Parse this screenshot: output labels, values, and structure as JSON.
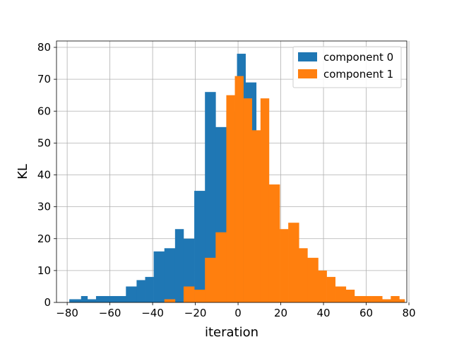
{
  "chart_data": {
    "type": "bar",
    "subtype": "histogram",
    "title": "",
    "xlabel": "iteration",
    "ylabel": "KL",
    "xlim": [
      -85,
      79
    ],
    "ylim": [
      0,
      82
    ],
    "xticks": [
      -80,
      -60,
      -40,
      -20,
      0,
      20,
      40,
      60,
      80
    ],
    "yticks": [
      0,
      10,
      20,
      30,
      40,
      50,
      60,
      70,
      80
    ],
    "grid": true,
    "legend_position": "top-right",
    "series": [
      {
        "name": "component 0",
        "color": "#1f77b4",
        "bins": [
          {
            "x0": -79,
            "x1": -73.5,
            "count": 1
          },
          {
            "x0": -73.5,
            "x1": -70.5,
            "count": 2
          },
          {
            "x0": -70.5,
            "x1": -66.5,
            "count": 1
          },
          {
            "x0": -66.5,
            "x1": -52.5,
            "count": 2
          },
          {
            "x0": -52.5,
            "x1": -47.5,
            "count": 5
          },
          {
            "x0": -47.5,
            "x1": -43.5,
            "count": 7
          },
          {
            "x0": -43.5,
            "x1": -39.5,
            "count": 8
          },
          {
            "x0": -39.5,
            "x1": -34.5,
            "count": 16
          },
          {
            "x0": -34.5,
            "x1": -29.5,
            "count": 17
          },
          {
            "x0": -29.5,
            "x1": -25.5,
            "count": 23
          },
          {
            "x0": -25.5,
            "x1": -20.5,
            "count": 20
          },
          {
            "x0": -20.5,
            "x1": -15.5,
            "count": 35
          },
          {
            "x0": -15.5,
            "x1": -10.5,
            "count": 66
          },
          {
            "x0": -10.5,
            "x1": -5.5,
            "count": 55
          },
          {
            "x0": -5.5,
            "x1": -0.5,
            "count": 60
          },
          {
            "x0": -0.5,
            "x1": 3.5,
            "count": 78
          },
          {
            "x0": 3.5,
            "x1": 8.5,
            "count": 69
          }
        ]
      },
      {
        "name": "component 1",
        "color": "#ff7f0e",
        "bins": [
          {
            "x0": -34.5,
            "x1": -29.5,
            "count": 1
          },
          {
            "x0": -25.5,
            "x1": -20.5,
            "count": 5
          },
          {
            "x0": -20.5,
            "x1": -15.5,
            "count": 4
          },
          {
            "x0": -15.5,
            "x1": -10.5,
            "count": 14
          },
          {
            "x0": -10.5,
            "x1": -5.5,
            "count": 22
          },
          {
            "x0": -5.5,
            "x1": -1.5,
            "count": 65
          },
          {
            "x0": -1.5,
            "x1": 2.5,
            "count": 71
          },
          {
            "x0": 2.5,
            "x1": 6.5,
            "count": 64
          },
          {
            "x0": 6.5,
            "x1": 10.5,
            "count": 54
          },
          {
            "x0": 10.5,
            "x1": 14.5,
            "count": 64
          },
          {
            "x0": 14.5,
            "x1": 19.5,
            "count": 37
          },
          {
            "x0": 19.5,
            "x1": 23.5,
            "count": 23
          },
          {
            "x0": 23.5,
            "x1": 28.5,
            "count": 25
          },
          {
            "x0": 28.5,
            "x1": 32.5,
            "count": 17
          },
          {
            "x0": 32.5,
            "x1": 37.5,
            "count": 14
          },
          {
            "x0": 37.5,
            "x1": 41.5,
            "count": 10
          },
          {
            "x0": 41.5,
            "x1": 45.5,
            "count": 8
          },
          {
            "x0": 45.5,
            "x1": 50.5,
            "count": 5
          },
          {
            "x0": 50.5,
            "x1": 54.5,
            "count": 4
          },
          {
            "x0": 54.5,
            "x1": 58.5,
            "count": 2
          },
          {
            "x0": 58.5,
            "x1": 62.5,
            "count": 2
          },
          {
            "x0": 62.5,
            "x1": 67.5,
            "count": 2
          },
          {
            "x0": 67.5,
            "x1": 71.5,
            "count": 1
          },
          {
            "x0": 71.5,
            "x1": 75.5,
            "count": 2
          },
          {
            "x0": 75.5,
            "x1": 78,
            "count": 1
          }
        ]
      }
    ]
  }
}
